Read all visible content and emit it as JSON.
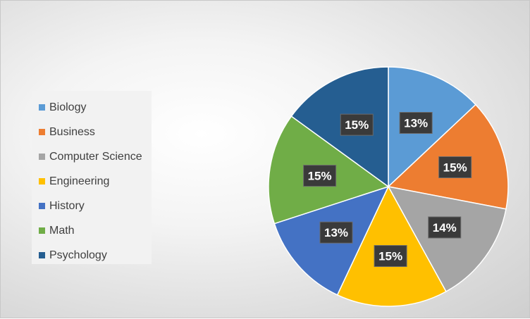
{
  "chart_data": {
    "type": "pie",
    "categories": [
      "Biology",
      "Business",
      "Computer Science",
      "Engineering",
      "History",
      "Math",
      "Psychology"
    ],
    "values": [
      13,
      15,
      14,
      15,
      13,
      15,
      15
    ],
    "labels": [
      "13%",
      "15%",
      "14%",
      "15%",
      "13%",
      "15%",
      "15%"
    ],
    "colors": [
      "#5b9bd5",
      "#ed7d31",
      "#a5a5a5",
      "#ffc000",
      "#4472c4",
      "#70ad47",
      "#255e91"
    ],
    "legend_position": "left",
    "start_angle_deg": 0,
    "direction": "clockwise"
  }
}
